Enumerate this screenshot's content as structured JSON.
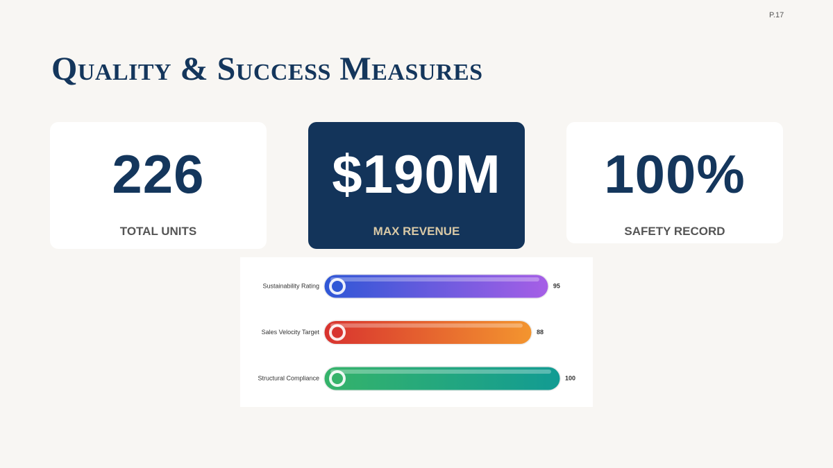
{
  "page_number": "P.17",
  "title": "Quality & Success Measures",
  "kpis": [
    {
      "value": "226",
      "label": "TOTAL UNITS"
    },
    {
      "value": "$190M",
      "label": "MAX REVENUE"
    },
    {
      "value": "100%",
      "label": "SAFETY RECORD"
    }
  ],
  "chart_data": {
    "type": "bar",
    "orientation": "horizontal",
    "categories": [
      "Sustainability Rating",
      "Sales Velocity Target",
      "Structural Compliance"
    ],
    "values": [
      95,
      88,
      100
    ],
    "colors": [
      [
        "#2f57d6",
        "#a65fe6"
      ],
      [
        "#d8332f",
        "#f3952f"
      ],
      [
        "#35b36a",
        "#129b93"
      ]
    ]
  }
}
